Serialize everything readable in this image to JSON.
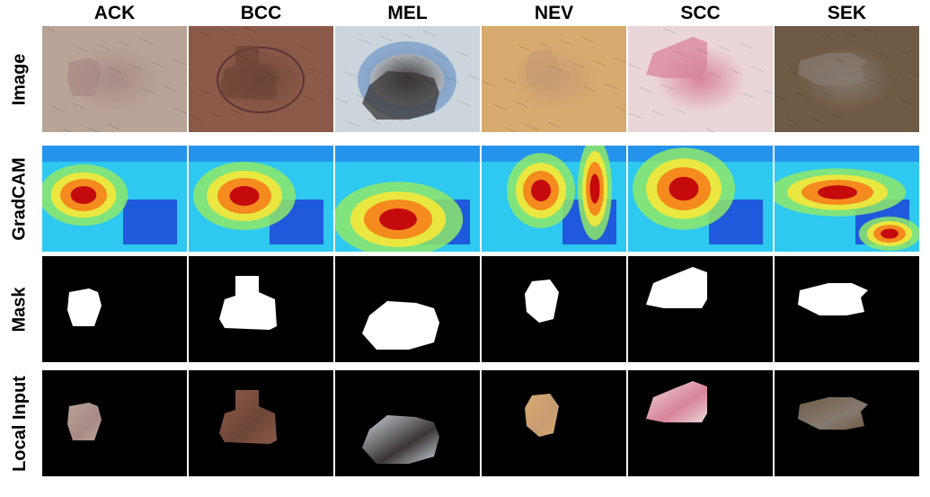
{
  "columns": [
    "ACK",
    "BCC",
    "MEL",
    "NEV",
    "SCC",
    "SEK"
  ],
  "rows": [
    "Image",
    "GradCAM",
    "Mask",
    "Local Input"
  ],
  "colors": {
    "background": "#ffffff",
    "mask_bg": "#000000",
    "mask_fg": "#ffffff"
  },
  "cells": [
    {
      "skin": "#b9a498",
      "lesion": "#a88a86",
      "rim": "",
      "icon": "skin-photo-icon"
    },
    {
      "skin": "#8b5a48",
      "lesion": "#6e4637",
      "rim": "#4d2a35",
      "icon": "skin-photo-icon"
    },
    {
      "skin": "#cdd5dc",
      "lesion": "#3a3536",
      "rim": "#7c9fc9",
      "icon": "skin-photo-icon"
    },
    {
      "skin": "#d7aa70",
      "lesion": "#c79c72",
      "rim": "",
      "icon": "skin-photo-icon"
    },
    {
      "skin": "#ead6d9",
      "lesion": "#d8849a",
      "rim": "",
      "icon": "skin-photo-icon"
    },
    {
      "skin": "#6f5a45",
      "lesion": "#857a70",
      "rim": "",
      "icon": "skin-photo-icon"
    }
  ]
}
